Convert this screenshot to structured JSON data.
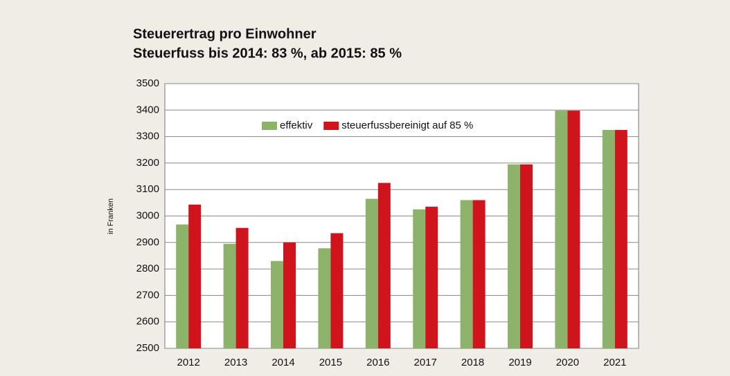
{
  "chart_data": {
    "type": "bar",
    "title": "Steuerertrag pro Einwohner",
    "subtitle": "Steuerfuss bis 2014: 83 %, ab 2015: 85 %",
    "y_label": "in Franken",
    "categories": [
      "2012",
      "2013",
      "2014",
      "2015",
      "2016",
      "2017",
      "2018",
      "2019",
      "2020",
      "2021"
    ],
    "series": [
      {
        "name": "effektiv",
        "color": "#8db36b",
        "values": [
          2968,
          2895,
          2830,
          2878,
          3065,
          3025,
          3060,
          3195,
          3398,
          3325
        ]
      },
      {
        "name": "steuerfussbereinigt auf 85 %",
        "color": "#d0141e",
        "values": [
          3043,
          2955,
          2900,
          2935,
          3125,
          3035,
          3060,
          3195,
          3398,
          3325
        ]
      }
    ],
    "ylim": [
      2500,
      3500
    ],
    "yticks": [
      2500,
      2600,
      2700,
      2800,
      2900,
      3000,
      3100,
      3200,
      3300,
      3400,
      3500
    ],
    "grid": true,
    "legend": "top"
  }
}
